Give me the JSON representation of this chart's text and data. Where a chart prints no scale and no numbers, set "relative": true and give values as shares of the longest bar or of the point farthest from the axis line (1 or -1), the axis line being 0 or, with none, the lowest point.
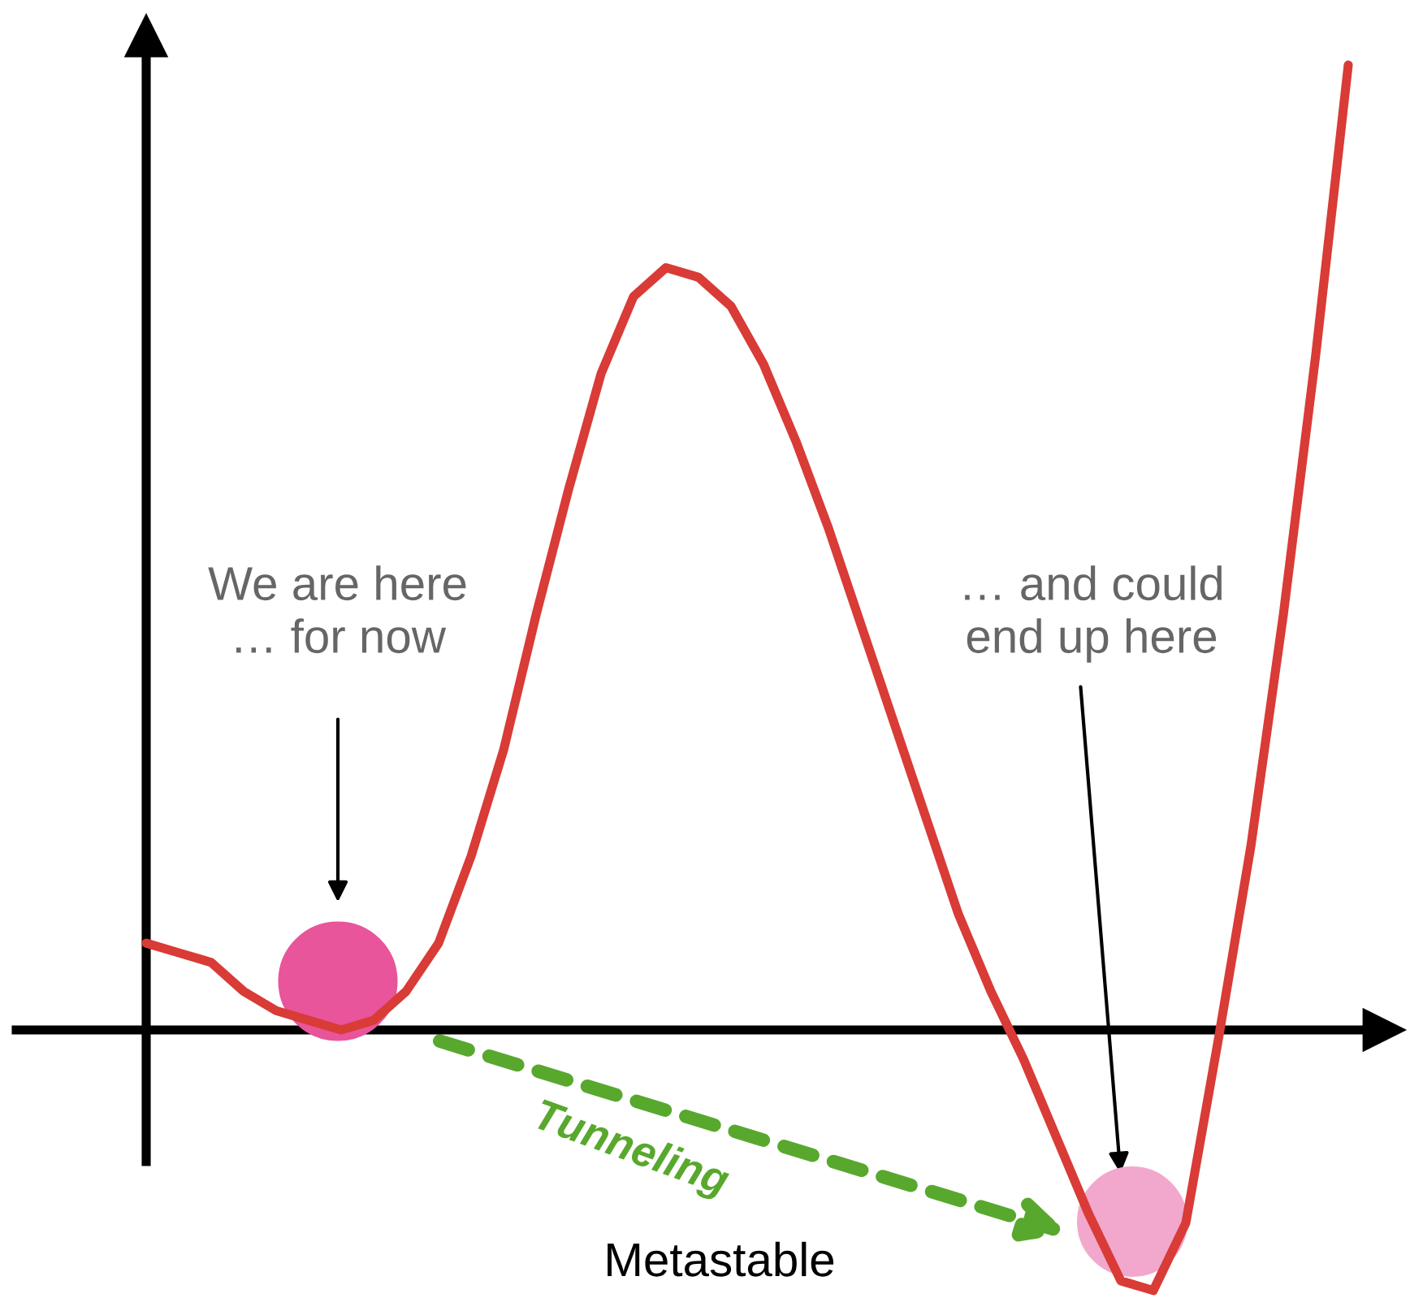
{
  "chart_data": {
    "type": "line",
    "relative": true,
    "categories": [
      null,
      null,
      null,
      null,
      null,
      null,
      null,
      null,
      null,
      null,
      null,
      null,
      null,
      null,
      null,
      null,
      null,
      null,
      null,
      null,
      null,
      null,
      null,
      null,
      null,
      null,
      null,
      null,
      null,
      null,
      null,
      null,
      null,
      null,
      null,
      null,
      null,
      null
    ],
    "series": [
      {
        "color": "#d93b36",
        "values": [
          0.09,
          0.08,
          0.07,
          0.04,
          0.02,
          0.01,
          0,
          0.01,
          0.04,
          0.09,
          0.18,
          0.29,
          0.43,
          0.56,
          0.68,
          0.76,
          0.79,
          0.78,
          0.75,
          0.69,
          0.61,
          0.52,
          0.42,
          0.32,
          0.22,
          0.12,
          0.04,
          -0.03,
          -0.11,
          -0.19,
          -0.26,
          -0.27,
          -0.2,
          -0.01,
          0.19,
          0.43,
          0.7,
          1
        ]
      }
    ],
    "annotations": [
      "We are here\n… for now",
      "… and could\nend up here",
      "Tunneling",
      "Metastable"
    ]
  }
}
